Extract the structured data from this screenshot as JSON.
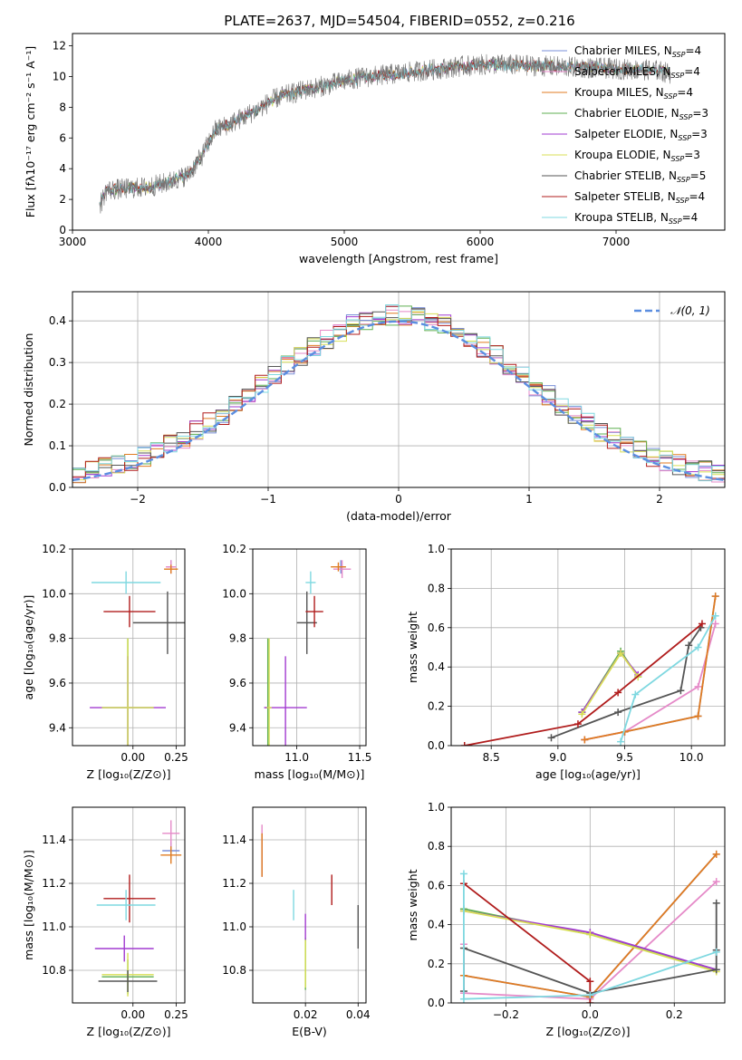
{
  "figure": {
    "title": "PLATE=2637, MJD=54504, FIBERID=0552, z=0.216"
  },
  "models": [
    {
      "name": "Chabrier MILES",
      "nssp": "4",
      "color": "#7a8fd8"
    },
    {
      "name": "Salpeter MILES",
      "nssp": "4",
      "color": "#e58ac8"
    },
    {
      "name": "Kroupa MILES",
      "nssp": "4",
      "color": "#e07b20"
    },
    {
      "name": "Chabrier ELODIE",
      "nssp": "3",
      "color": "#5faf50"
    },
    {
      "name": "Salpeter ELODIE",
      "nssp": "3",
      "color": "#a23bd0"
    },
    {
      "name": "Kroupa ELODIE",
      "nssp": "3",
      "color": "#d8df55"
    },
    {
      "name": "Chabrier STELIB",
      "nssp": "5",
      "color": "#555555"
    },
    {
      "name": "Salpeter STELIB",
      "nssp": "4",
      "color": "#b01c1c"
    },
    {
      "name": "Kroupa STELIB",
      "nssp": "4",
      "color": "#7fd8e0"
    }
  ],
  "chart_data": [
    {
      "id": "spectrum",
      "type": "line",
      "title": "PLATE=2637, MJD=54504, FIBERID=0552, z=0.216",
      "xlabel": "wavelength [Angstrom, rest frame]",
      "ylabel": "Flux [fλ10⁻¹⁷ erg cm⁻² s⁻¹ A⁻¹]",
      "xlim": [
        3000,
        7800
      ],
      "ylim": [
        0,
        12.8
      ],
      "xticks": [
        3000,
        4000,
        5000,
        6000,
        7000
      ],
      "yticks": [
        0,
        2,
        4,
        6,
        8,
        10,
        12
      ],
      "continuum": [
        [
          3200,
          1.6
        ],
        [
          3250,
          2.6
        ],
        [
          3400,
          2.7
        ],
        [
          3550,
          2.8
        ],
        [
          3700,
          3.1
        ],
        [
          3850,
          3.6
        ],
        [
          3950,
          4.8
        ],
        [
          4050,
          6.5
        ],
        [
          4200,
          7.1
        ],
        [
          4350,
          7.8
        ],
        [
          4500,
          8.6
        ],
        [
          4700,
          9.1
        ],
        [
          4900,
          9.5
        ],
        [
          5100,
          9.9
        ],
        [
          5300,
          10.1
        ],
        [
          5500,
          10.3
        ],
        [
          5700,
          10.5
        ],
        [
          5900,
          10.7
        ],
        [
          6100,
          10.8
        ],
        [
          6400,
          10.7
        ],
        [
          6700,
          10.6
        ],
        [
          7000,
          10.5
        ],
        [
          7300,
          10.4
        ],
        [
          7400,
          10.2
        ]
      ]
    },
    {
      "id": "residuals",
      "type": "histogram",
      "xlabel": "(data-model)/error",
      "ylabel": "Normed distribution",
      "xlim": [
        -2.5,
        2.5
      ],
      "ylim": [
        0,
        0.47
      ],
      "xticks": [
        -2,
        -1,
        0,
        1,
        2
      ],
      "yticks": [
        0.0,
        0.1,
        0.2,
        0.3,
        0.4
      ],
      "reference": {
        "name": "𝒩(0, 1)",
        "mu": 0,
        "sigma": 1,
        "color": "#5b8ee0"
      }
    },
    {
      "id": "age_vs_Z",
      "type": "scatter",
      "xlabel": "Z [log₁₀(Z/Z⊙)]",
      "ylabel": "age  [log₁₀(age/yr)]",
      "xlim": [
        -0.35,
        0.3
      ],
      "ylim": [
        9.32,
        10.2
      ],
      "xticks": [
        0.0,
        0.25
      ],
      "yticks": [
        9.4,
        9.6,
        9.8,
        10.0,
        10.2
      ],
      "points": [
        {
          "m": 0,
          "x": 0.22,
          "y": 10.12,
          "xe": 0.02,
          "ye": 0.03
        },
        {
          "m": 1,
          "x": 0.22,
          "y": 10.12,
          "xe": 0.03,
          "ye": 0.03
        },
        {
          "m": 2,
          "x": 0.22,
          "y": 10.11,
          "xe": 0.04,
          "ye": 0.02
        },
        {
          "m": 3,
          "x": -0.03,
          "y": 9.49,
          "xe": 0.15,
          "ye": 0.31
        },
        {
          "m": 4,
          "x": -0.03,
          "y": 9.49,
          "xe": 0.22,
          "ye": 0.23
        },
        {
          "m": 5,
          "x": -0.03,
          "y": 9.49,
          "xe": 0.15,
          "ye": 0.31
        },
        {
          "m": 6,
          "x": 0.2,
          "y": 9.87,
          "xe": 0.2,
          "ye": 0.14
        },
        {
          "m": 7,
          "x": -0.02,
          "y": 9.92,
          "xe": 0.15,
          "ye": 0.07
        },
        {
          "m": 8,
          "x": -0.04,
          "y": 10.05,
          "xe": 0.2,
          "ye": 0.05
        }
      ]
    },
    {
      "id": "age_vs_mass",
      "type": "scatter",
      "xlabel": "mass [log₁₀(M/M⊙)]",
      "ylabel": "",
      "xlim": [
        10.65,
        11.55
      ],
      "ylim": [
        9.32,
        10.2
      ],
      "xticks": [
        11.0,
        11.5
      ],
      "yticks": [
        9.4,
        9.6,
        9.8,
        10.0,
        10.2
      ],
      "points": [
        {
          "m": 0,
          "x": 11.35,
          "y": 10.12,
          "xe": 0.04,
          "ye": 0.03
        },
        {
          "m": 1,
          "x": 11.36,
          "y": 10.11,
          "xe": 0.07,
          "ye": 0.04
        },
        {
          "m": 2,
          "x": 11.33,
          "y": 10.12,
          "xe": 0.06,
          "ye": 0.02
        },
        {
          "m": 3,
          "x": 10.77,
          "y": 9.49,
          "xe": 0.02,
          "ye": 0.31
        },
        {
          "m": 4,
          "x": 10.91,
          "y": 9.49,
          "xe": 0.17,
          "ye": 0.23
        },
        {
          "m": 5,
          "x": 10.78,
          "y": 9.49,
          "xe": 0.02,
          "ye": 0.31
        },
        {
          "m": 6,
          "x": 11.08,
          "y": 9.87,
          "xe": 0.08,
          "ye": 0.14
        },
        {
          "m": 7,
          "x": 11.14,
          "y": 9.92,
          "xe": 0.07,
          "ye": 0.07
        },
        {
          "m": 8,
          "x": 11.11,
          "y": 10.05,
          "xe": 0.04,
          "ye": 0.05
        }
      ]
    },
    {
      "id": "weight_vs_age",
      "type": "line",
      "xlabel": "age  [log₁₀(age/yr)]",
      "ylabel": "mass weight",
      "xlim": [
        8.2,
        10.25
      ],
      "ylim": [
        0,
        1.0
      ],
      "xticks": [
        8.5,
        9.0,
        9.5,
        10.0
      ],
      "yticks": [
        0.0,
        0.2,
        0.4,
        0.6,
        0.8,
        1.0
      ],
      "series": [
        {
          "m": 0,
          "x": [
            9.2,
            9.5,
            10.05,
            10.18
          ],
          "y": [
            0.03,
            0.07,
            0.15,
            0.76
          ]
        },
        {
          "m": 1,
          "x": [
            9.2,
            9.5,
            10.05,
            10.18
          ],
          "y": [
            0.03,
            0.07,
            0.3,
            0.62
          ]
        },
        {
          "m": 2,
          "x": [
            9.2,
            9.5,
            10.05,
            10.18
          ],
          "y": [
            0.03,
            0.07,
            0.15,
            0.76
          ]
        },
        {
          "m": 3,
          "x": [
            9.18,
            9.47,
            9.6
          ],
          "y": [
            0.17,
            0.48,
            0.35
          ]
        },
        {
          "m": 4,
          "x": [
            9.18,
            9.47,
            9.6
          ],
          "y": [
            0.17,
            0.47,
            0.36
          ]
        },
        {
          "m": 5,
          "x": [
            9.18,
            9.47,
            9.6
          ],
          "y": [
            0.16,
            0.47,
            0.35
          ]
        },
        {
          "m": 6,
          "x": [
            8.95,
            9.45,
            9.92,
            9.98,
            10.07
          ],
          "y": [
            0.04,
            0.17,
            0.28,
            0.51,
            0.6
          ]
        },
        {
          "m": 7,
          "x": [
            8.3,
            9.15,
            9.45,
            10.08
          ],
          "y": [
            0.0,
            0.11,
            0.27,
            0.62
          ]
        },
        {
          "m": 8,
          "x": [
            9.47,
            9.58,
            10.05,
            10.18
          ],
          "y": [
            0.02,
            0.26,
            0.5,
            0.66
          ]
        }
      ]
    },
    {
      "id": "mass_vs_Z",
      "type": "scatter",
      "xlabel": "Z [log₁₀(Z/Z⊙)]",
      "ylabel": "mass [log₁₀(M/M⊙)]",
      "xlim": [
        -0.35,
        0.3
      ],
      "ylim": [
        10.65,
        11.55
      ],
      "xticks": [
        0.0,
        0.25
      ],
      "yticks": [
        10.8,
        11.0,
        11.2,
        11.4
      ],
      "points": [
        {
          "m": 0,
          "x": 0.22,
          "y": 11.35,
          "xe": 0.05,
          "ye": 0.04
        },
        {
          "m": 1,
          "x": 0.22,
          "y": 11.43,
          "xe": 0.05,
          "ye": 0.06
        },
        {
          "m": 2,
          "x": 0.22,
          "y": 11.33,
          "xe": 0.06,
          "ye": 0.04
        },
        {
          "m": 3,
          "x": -0.03,
          "y": 10.77,
          "xe": 0.15,
          "ye": 0.08
        },
        {
          "m": 4,
          "x": -0.05,
          "y": 10.9,
          "xe": 0.17,
          "ye": 0.06
        },
        {
          "m": 5,
          "x": -0.03,
          "y": 10.78,
          "xe": 0.15,
          "ye": 0.1
        },
        {
          "m": 6,
          "x": -0.03,
          "y": 10.75,
          "xe": 0.17,
          "ye": 0.05
        },
        {
          "m": 7,
          "x": -0.02,
          "y": 11.13,
          "xe": 0.15,
          "ye": 0.11
        },
        {
          "m": 8,
          "x": -0.04,
          "y": 11.1,
          "xe": 0.17,
          "ye": 0.07
        }
      ]
    },
    {
      "id": "mass_vs_ebv",
      "type": "scatter",
      "xlabel": "E(B-V)",
      "ylabel": "",
      "xlim": [
        0.0,
        0.043
      ],
      "ylim": [
        10.65,
        11.55
      ],
      "xticks": [
        0.02,
        0.04
      ],
      "yticks": [
        10.8,
        11.0,
        11.2,
        11.4
      ],
      "points": [
        {
          "m": 0,
          "x": 0.0035,
          "y": 11.33,
          "ye": 0.1
        },
        {
          "m": 1,
          "x": 0.0035,
          "y": 11.35,
          "ye": 0.12
        },
        {
          "m": 2,
          "x": 0.0035,
          "y": 11.33,
          "ye": 0.1
        },
        {
          "m": 3,
          "x": 0.02,
          "y": 10.83,
          "ye": 0.12
        },
        {
          "m": 4,
          "x": 0.02,
          "y": 11.0,
          "ye": 0.06
        },
        {
          "m": 5,
          "x": 0.02,
          "y": 10.83,
          "ye": 0.11
        },
        {
          "m": 6,
          "x": 0.04,
          "y": 11.0,
          "ye": 0.1
        },
        {
          "m": 7,
          "x": 0.03,
          "y": 11.17,
          "ye": 0.07
        },
        {
          "m": 8,
          "x": 0.0155,
          "y": 11.1,
          "ye": 0.07
        }
      ]
    },
    {
      "id": "weight_vs_Z",
      "type": "line",
      "xlabel": "Z [log₁₀(Z/Z⊙)]",
      "ylabel": "mass weight",
      "xlim": [
        -0.33,
        0.32
      ],
      "ylim": [
        0,
        1.0
      ],
      "xticks": [
        -0.2,
        0.0,
        0.2
      ],
      "yticks": [
        0.0,
        0.2,
        0.4,
        0.6,
        0.8,
        1.0
      ],
      "series": [
        {
          "m": 0,
          "x": [
            -0.3,
            0.0,
            0.3
          ],
          "y": [
            0.14,
            0.03,
            0.76
          ]
        },
        {
          "m": 1,
          "x": [
            -0.3,
            -0.3,
            0.0,
            0.3
          ],
          "y": [
            0.3,
            0.05,
            0.02,
            0.62
          ]
        },
        {
          "m": 2,
          "x": [
            -0.3,
            0.0,
            0.3
          ],
          "y": [
            0.14,
            0.03,
            0.76
          ]
        },
        {
          "m": 3,
          "x": [
            -0.3,
            0.0,
            0.3
          ],
          "y": [
            0.48,
            0.35,
            0.17
          ]
        },
        {
          "m": 4,
          "x": [
            -0.3,
            0.0,
            0.3
          ],
          "y": [
            0.47,
            0.36,
            0.17
          ]
        },
        {
          "m": 5,
          "x": [
            -0.3,
            0.0,
            0.3
          ],
          "y": [
            0.47,
            0.35,
            0.16
          ]
        },
        {
          "m": 6,
          "x": [
            -0.3,
            -0.3,
            0.0,
            0.3,
            0.3,
            0.3
          ],
          "y": [
            0.06,
            0.28,
            0.05,
            0.17,
            0.27,
            0.51
          ]
        },
        {
          "m": 7,
          "x": [
            -0.3,
            0.0,
            0.0
          ],
          "y": [
            0.61,
            0.11,
            0.0
          ]
        },
        {
          "m": 8,
          "x": [
            -0.3,
            -0.3,
            0.0,
            0.3
          ],
          "y": [
            0.66,
            0.02,
            0.04,
            0.26
          ]
        }
      ]
    }
  ]
}
